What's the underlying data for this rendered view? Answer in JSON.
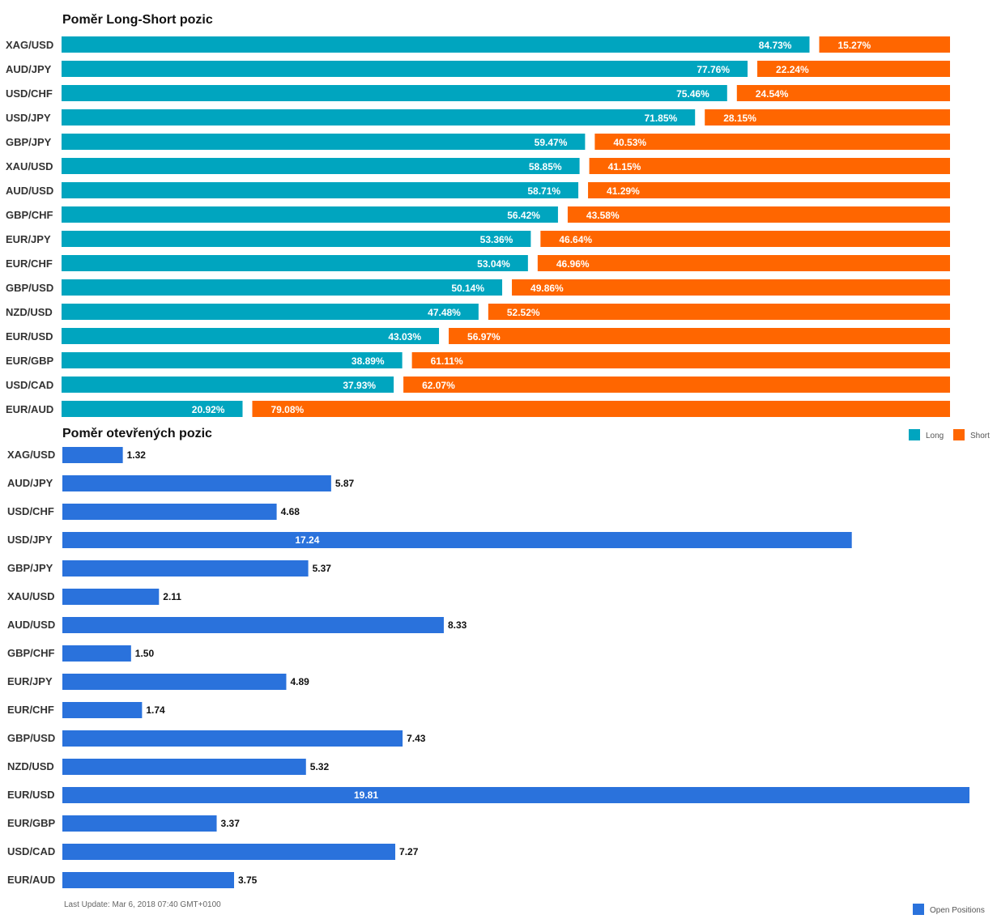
{
  "colors": {
    "long": "#00a5bf",
    "short": "#ff6600",
    "open": "#2a72dc"
  },
  "chart_data": [
    {
      "type": "bar",
      "orientation": "horizontal",
      "stacked": true,
      "title": "Poměr Long-Short pozic",
      "categories": [
        "XAG/USD",
        "AUD/JPY",
        "USD/CHF",
        "USD/JPY",
        "GBP/JPY",
        "XAU/USD",
        "AUD/USD",
        "GBP/CHF",
        "EUR/JPY",
        "EUR/CHF",
        "GBP/USD",
        "NZD/USD",
        "EUR/USD",
        "EUR/GBP",
        "USD/CAD",
        "EUR/AUD"
      ],
      "series": [
        {
          "name": "Long",
          "values": [
            84.73,
            77.76,
            75.46,
            71.85,
            59.47,
            58.85,
            58.71,
            56.42,
            53.36,
            53.04,
            50.14,
            47.48,
            43.03,
            38.89,
            37.93,
            20.92
          ]
        },
        {
          "name": "Short",
          "values": [
            15.27,
            22.24,
            24.54,
            28.15,
            40.53,
            41.15,
            41.29,
            43.58,
            46.64,
            46.96,
            49.86,
            52.52,
            56.97,
            61.11,
            62.07,
            79.08
          ]
        }
      ],
      "unit": "%",
      "legend": "bottom-right"
    },
    {
      "type": "bar",
      "orientation": "horizontal",
      "title": "Poměr otevřených pozic",
      "categories": [
        "XAG/USD",
        "AUD/JPY",
        "USD/CHF",
        "USD/JPY",
        "GBP/JPY",
        "XAU/USD",
        "AUD/USD",
        "GBP/CHF",
        "EUR/JPY",
        "EUR/CHF",
        "GBP/USD",
        "NZD/USD",
        "EUR/USD",
        "EUR/GBP",
        "USD/CAD",
        "EUR/AUD"
      ],
      "series": [
        {
          "name": "Open Positions",
          "values": [
            1.32,
            5.87,
            4.68,
            17.24,
            5.37,
            2.11,
            8.33,
            1.5,
            4.89,
            1.74,
            7.43,
            5.32,
            19.81,
            3.37,
            7.27,
            3.75
          ]
        }
      ],
      "xlim": [
        0,
        19.81
      ],
      "legend": "bottom-right"
    }
  ],
  "footer": {
    "last_update": "Last Update: Mar 6, 2018 07:40 GMT+0100"
  }
}
